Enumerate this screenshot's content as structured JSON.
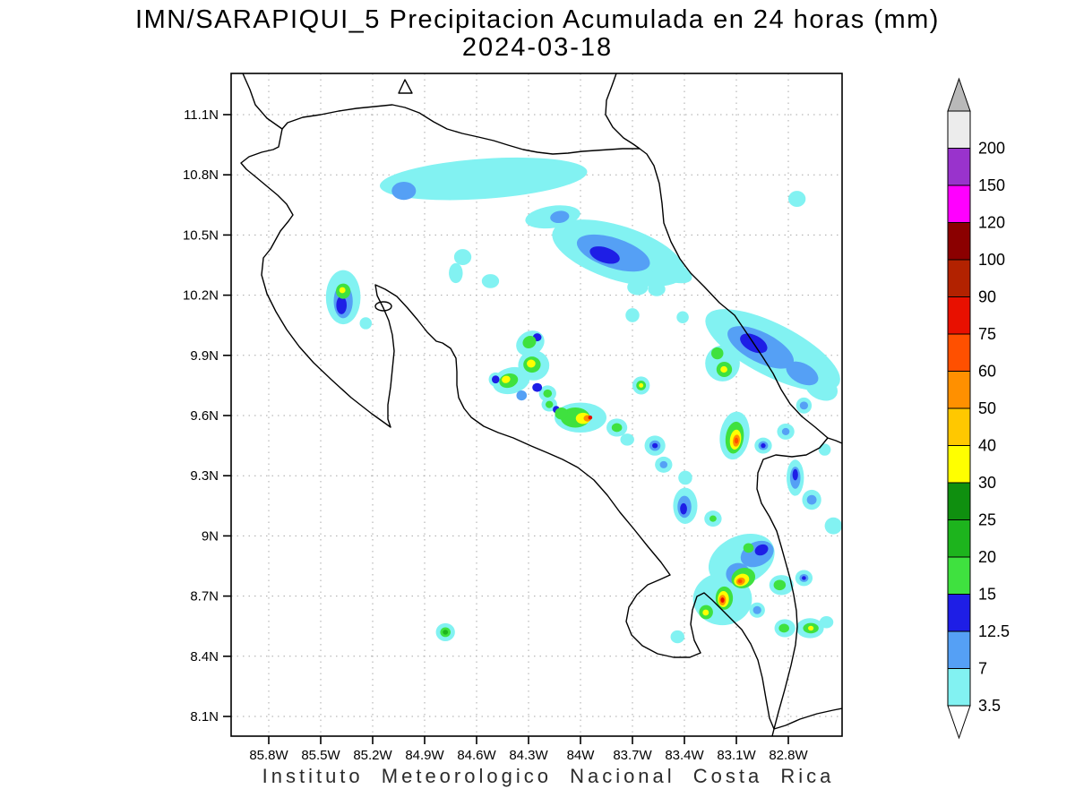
{
  "title": {
    "line1": "IMN/SARAPIQUI_5 Precipitacion Acumulada en 24 horas (mm)",
    "line2": "2024-03-18"
  },
  "footer": {
    "caption": "Instituto Meteorologico Nacional Costa Rica"
  },
  "chart_data": {
    "type": "heatmap",
    "title": "IMN/SARAPIQUI_5 Precipitacion Acumulada en 24 horas (mm)",
    "date": "2024-03-18",
    "variable": "Precipitacion Acumulada en 24 horas",
    "units": "mm",
    "source_label": "IMN/SARAPIQUI_5",
    "region": "Costa Rica",
    "grid": "dotted",
    "legend_position": "right colorbar",
    "y_ticks": [
      {
        "label": "11.1N",
        "lat": 11.1
      },
      {
        "label": "10.8N",
        "lat": 10.8
      },
      {
        "label": "10.5N",
        "lat": 10.5
      },
      {
        "label": "10.2N",
        "lat": 10.2
      },
      {
        "label": "9.9N",
        "lat": 9.9
      },
      {
        "label": "9.6N",
        "lat": 9.6
      },
      {
        "label": "9.3N",
        "lat": 9.3
      },
      {
        "label": "9N",
        "lat": 9.0
      },
      {
        "label": "8.7N",
        "lat": 8.7
      },
      {
        "label": "8.4N",
        "lat": 8.4
      },
      {
        "label": "8.1N",
        "lat": 8.1
      }
    ],
    "x_ticks": [
      {
        "label": "85.8W",
        "lon": -85.8
      },
      {
        "label": "85.5W",
        "lon": -85.5
      },
      {
        "label": "85.2W",
        "lon": -85.2
      },
      {
        "label": "84.9W",
        "lon": -84.9
      },
      {
        "label": "84.6W",
        "lon": -84.6
      },
      {
        "label": "84.3W",
        "lon": -84.3
      },
      {
        "label": "84W",
        "lon": -84.0
      },
      {
        "label": "83.7W",
        "lon": -83.7
      },
      {
        "label": "83.4W",
        "lon": -83.4
      },
      {
        "label": "83.1W",
        "lon": -83.1
      },
      {
        "label": "82.8W",
        "lon": -82.8
      }
    ],
    "levels_mm": [
      3.5,
      7,
      12.5,
      15,
      20,
      25,
      30,
      40,
      50,
      60,
      75,
      90,
      100,
      120,
      150,
      200
    ],
    "colorbar": {
      "top_arrow_color": "#b9b9b9",
      "bottom_arrow_color": "#ffffff",
      "segments_top_to_bottom": [
        {
          "range": "> 200",
          "color": "#ececec",
          "label": "200"
        },
        {
          "range": "150-200",
          "color": "#9933cc",
          "label": "150"
        },
        {
          "range": "120-150",
          "color": "#ff00ff",
          "label": "120"
        },
        {
          "range": "100-120",
          "color": "#8b0000",
          "label": "100"
        },
        {
          "range": "90-100",
          "color": "#b22200",
          "label": "90"
        },
        {
          "range": "75-90",
          "color": "#e81000",
          "label": "75"
        },
        {
          "range": "60-75",
          "color": "#ff5000",
          "label": "60"
        },
        {
          "range": "50-60",
          "color": "#ff9000",
          "label": "50"
        },
        {
          "range": "40-50",
          "color": "#ffc800",
          "label": "40"
        },
        {
          "range": "30-40",
          "color": "#ffff00",
          "label": "30"
        },
        {
          "range": "25-30",
          "color": "#0f8f0f",
          "label": "25"
        },
        {
          "range": "20-25",
          "color": "#1db41d",
          "label": "20"
        },
        {
          "range": "15-20",
          "color": "#3fe13f",
          "label": "15"
        },
        {
          "range": "12.5-15",
          "color": "#1e1ee6",
          "label": "12.5"
        },
        {
          "range": "7-12.5",
          "color": "#55a0f5",
          "label": "7"
        },
        {
          "range": "3.5-7",
          "color": "#82f2f2",
          "label": "3.5"
        }
      ]
    },
    "cells_format": "[lon_deg, lat_deg, rx_deg, ry_deg, rotation_deg, mm_value] — approximate filled-contour precipitation cells; mm is a representative value inside the color band",
    "cells": [
      [
        -84.56,
        10.78,
        0.6,
        0.1,
        -4,
        5
      ],
      [
        -85.02,
        10.72,
        0.07,
        0.045,
        0,
        9
      ],
      [
        -84.16,
        10.59,
        0.16,
        0.055,
        -8,
        5
      ],
      [
        -84.12,
        10.59,
        0.055,
        0.03,
        -8,
        9
      ],
      [
        -83.78,
        10.41,
        0.4,
        0.135,
        18,
        5
      ],
      [
        -83.81,
        10.41,
        0.22,
        0.075,
        18,
        9
      ],
      [
        -83.86,
        10.4,
        0.09,
        0.038,
        18,
        13
      ],
      [
        -83.48,
        10.32,
        0.13,
        0.05,
        20,
        5
      ],
      [
        -83.67,
        10.24,
        0.06,
        0.04,
        0,
        5
      ],
      [
        -83.56,
        10.23,
        0.05,
        0.035,
        0,
        5
      ],
      [
        -84.68,
        10.39,
        0.05,
        0.04,
        0,
        5
      ],
      [
        -84.72,
        10.31,
        0.04,
        0.05,
        0,
        5
      ],
      [
        -84.52,
        10.27,
        0.05,
        0.035,
        0,
        5
      ],
      [
        -82.75,
        10.68,
        0.05,
        0.04,
        0,
        5
      ],
      [
        -85.37,
        10.19,
        0.1,
        0.135,
        0,
        5
      ],
      [
        -85.37,
        10.17,
        0.055,
        0.085,
        0,
        9
      ],
      [
        -85.38,
        10.15,
        0.03,
        0.045,
        0,
        13
      ],
      [
        -85.37,
        10.22,
        0.042,
        0.038,
        0,
        17
      ],
      [
        -85.375,
        10.225,
        0.018,
        0.015,
        0,
        32
      ],
      [
        -85.24,
        10.06,
        0.035,
        0.03,
        0,
        5
      ],
      [
        -84.29,
        9.96,
        0.085,
        0.06,
        -30,
        5
      ],
      [
        -84.295,
        9.966,
        0.04,
        0.03,
        -30,
        17
      ],
      [
        -84.25,
        9.99,
        0.025,
        0.02,
        0,
        13
      ],
      [
        -84.27,
        9.85,
        0.09,
        0.075,
        0,
        5
      ],
      [
        -84.28,
        9.854,
        0.05,
        0.04,
        0,
        17
      ],
      [
        -84.285,
        9.859,
        0.025,
        0.02,
        0,
        32
      ],
      [
        -84.4,
        9.774,
        0.11,
        0.065,
        -15,
        5
      ],
      [
        -84.415,
        9.774,
        0.055,
        0.035,
        -15,
        17
      ],
      [
        -84.43,
        9.78,
        0.025,
        0.018,
        -15,
        32
      ],
      [
        -84.19,
        9.71,
        0.05,
        0.04,
        0,
        5
      ],
      [
        -84.19,
        9.71,
        0.025,
        0.02,
        0,
        17
      ],
      [
        -84.25,
        9.74,
        0.028,
        0.022,
        0,
        13
      ],
      [
        -84.34,
        9.7,
        0.03,
        0.025,
        0,
        9
      ],
      [
        -84.49,
        9.78,
        0.04,
        0.035,
        0,
        5
      ],
      [
        -84.49,
        9.78,
        0.022,
        0.02,
        0,
        13
      ],
      [
        -84.0,
        9.59,
        0.15,
        0.075,
        0,
        5
      ],
      [
        -84.03,
        9.59,
        0.085,
        0.05,
        0,
        17
      ],
      [
        -83.985,
        9.586,
        0.042,
        0.028,
        0,
        32
      ],
      [
        -83.96,
        9.586,
        0.022,
        0.016,
        0,
        52
      ],
      [
        -83.944,
        9.59,
        0.012,
        0.01,
        0,
        78
      ],
      [
        -84.11,
        9.61,
        0.038,
        0.03,
        0,
        17
      ],
      [
        -84.14,
        9.63,
        0.02,
        0.018,
        0,
        13
      ],
      [
        -84.18,
        9.655,
        0.045,
        0.035,
        0,
        5
      ],
      [
        -84.18,
        9.655,
        0.022,
        0.018,
        0,
        17
      ],
      [
        -83.79,
        9.54,
        0.06,
        0.045,
        0,
        5
      ],
      [
        -83.79,
        9.54,
        0.03,
        0.022,
        0,
        17
      ],
      [
        -83.73,
        9.48,
        0.04,
        0.03,
        0,
        5
      ],
      [
        -83.65,
        9.75,
        0.05,
        0.045,
        0,
        5
      ],
      [
        -83.65,
        9.75,
        0.028,
        0.024,
        0,
        17
      ],
      [
        -83.65,
        9.75,
        0.013,
        0.011,
        0,
        32
      ],
      [
        -83.57,
        9.45,
        0.06,
        0.05,
        0,
        5
      ],
      [
        -83.57,
        9.45,
        0.032,
        0.026,
        0,
        9
      ],
      [
        -83.57,
        9.45,
        0.016,
        0.013,
        0,
        13
      ],
      [
        -83.52,
        9.355,
        0.05,
        0.04,
        0,
        5
      ],
      [
        -83.52,
        9.355,
        0.022,
        0.018,
        0,
        9
      ],
      [
        -82.89,
        9.926,
        0.43,
        0.13,
        27,
        5
      ],
      [
        -82.96,
        9.94,
        0.21,
        0.075,
        27,
        9
      ],
      [
        -83.0,
        9.96,
        0.085,
        0.04,
        27,
        13
      ],
      [
        -82.72,
        9.81,
        0.1,
        0.05,
        27,
        9
      ],
      [
        -82.61,
        9.74,
        0.1,
        0.06,
        27,
        5
      ],
      [
        -83.18,
        9.86,
        0.1,
        0.09,
        0,
        5
      ],
      [
        -83.21,
        9.91,
        0.035,
        0.03,
        0,
        17
      ],
      [
        -83.17,
        9.83,
        0.045,
        0.038,
        0,
        17
      ],
      [
        -83.172,
        9.83,
        0.02,
        0.016,
        0,
        32
      ],
      [
        -83.11,
        9.5,
        0.085,
        0.12,
        8,
        5
      ],
      [
        -83.11,
        9.49,
        0.052,
        0.08,
        8,
        17
      ],
      [
        -83.105,
        9.48,
        0.032,
        0.05,
        8,
        32
      ],
      [
        -83.1,
        9.475,
        0.02,
        0.03,
        8,
        52
      ],
      [
        -83.1,
        9.475,
        0.011,
        0.015,
        0,
        65
      ],
      [
        -82.945,
        9.45,
        0.05,
        0.04,
        0,
        5
      ],
      [
        -82.945,
        9.45,
        0.028,
        0.022,
        0,
        9
      ],
      [
        -82.945,
        9.45,
        0.014,
        0.012,
        0,
        13
      ],
      [
        -82.815,
        9.52,
        0.05,
        0.04,
        0,
        5
      ],
      [
        -82.815,
        9.52,
        0.022,
        0.018,
        0,
        9
      ],
      [
        -82.71,
        9.65,
        0.045,
        0.04,
        0,
        5
      ],
      [
        -82.71,
        9.65,
        0.024,
        0.02,
        0,
        9
      ],
      [
        -82.76,
        9.29,
        0.05,
        0.09,
        0,
        5
      ],
      [
        -82.76,
        9.29,
        0.03,
        0.055,
        0,
        9
      ],
      [
        -82.76,
        9.305,
        0.016,
        0.028,
        0,
        13
      ],
      [
        -82.665,
        9.18,
        0.055,
        0.05,
        0,
        5
      ],
      [
        -82.665,
        9.18,
        0.028,
        0.024,
        0,
        9
      ],
      [
        -82.59,
        9.43,
        0.035,
        0.03,
        0,
        5
      ],
      [
        -83.395,
        9.29,
        0.04,
        0.035,
        0,
        5
      ],
      [
        -83.395,
        9.15,
        0.07,
        0.09,
        0,
        5
      ],
      [
        -83.4,
        9.145,
        0.04,
        0.055,
        0,
        9
      ],
      [
        -83.405,
        9.135,
        0.02,
        0.028,
        0,
        13
      ],
      [
        -83.235,
        9.086,
        0.05,
        0.04,
        0,
        5
      ],
      [
        -83.235,
        9.086,
        0.02,
        0.016,
        0,
        17
      ],
      [
        -82.54,
        9.05,
        0.05,
        0.042,
        0,
        5
      ],
      [
        -83.07,
        8.88,
        0.2,
        0.12,
        -25,
        5
      ],
      [
        -83.18,
        8.685,
        0.17,
        0.13,
        0,
        5
      ],
      [
        -82.98,
        8.91,
        0.1,
        0.06,
        -25,
        9
      ],
      [
        -82.955,
        8.93,
        0.04,
        0.026,
        -25,
        13
      ],
      [
        -83.09,
        8.81,
        0.07,
        0.055,
        0,
        9
      ],
      [
        -83.06,
        8.79,
        0.07,
        0.05,
        -20,
        17
      ],
      [
        -83.07,
        8.78,
        0.045,
        0.03,
        -20,
        32
      ],
      [
        -83.075,
        8.774,
        0.026,
        0.018,
        -20,
        52
      ],
      [
        -83.078,
        8.774,
        0.012,
        0.009,
        0,
        65
      ],
      [
        -83.17,
        8.69,
        0.05,
        0.058,
        0,
        17
      ],
      [
        -83.175,
        8.685,
        0.032,
        0.04,
        0,
        32
      ],
      [
        -83.18,
        8.68,
        0.02,
        0.026,
        0,
        52
      ],
      [
        -83.18,
        8.68,
        0.011,
        0.013,
        0,
        78
      ],
      [
        -83.275,
        8.62,
        0.04,
        0.035,
        0,
        17
      ],
      [
        -83.277,
        8.618,
        0.018,
        0.015,
        0,
        32
      ],
      [
        -83.03,
        8.94,
        0.045,
        0.036,
        0,
        5
      ],
      [
        -83.03,
        8.94,
        0.03,
        0.024,
        0,
        17
      ],
      [
        -82.84,
        8.755,
        0.07,
        0.05,
        0,
        5
      ],
      [
        -82.85,
        8.755,
        0.035,
        0.026,
        0,
        17
      ],
      [
        -82.71,
        8.79,
        0.05,
        0.04,
        0,
        5
      ],
      [
        -82.71,
        8.79,
        0.026,
        0.02,
        0,
        9
      ],
      [
        -82.71,
        8.79,
        0.012,
        0.01,
        0,
        13
      ],
      [
        -82.98,
        8.63,
        0.045,
        0.038,
        0,
        5
      ],
      [
        -82.98,
        8.63,
        0.024,
        0.02,
        0,
        9
      ],
      [
        -82.82,
        8.54,
        0.06,
        0.045,
        0,
        5
      ],
      [
        -82.825,
        8.54,
        0.03,
        0.022,
        0,
        17
      ],
      [
        -82.675,
        8.54,
        0.08,
        0.05,
        0,
        5
      ],
      [
        -82.67,
        8.54,
        0.045,
        0.026,
        0,
        17
      ],
      [
        -82.67,
        8.54,
        0.016,
        0.012,
        0,
        32
      ],
      [
        -82.58,
        8.57,
        0.04,
        0.03,
        0,
        5
      ],
      [
        -84.78,
        8.52,
        0.055,
        0.045,
        0,
        5
      ],
      [
        -84.78,
        8.52,
        0.03,
        0.024,
        0,
        17
      ],
      [
        -84.78,
        8.52,
        0.015,
        0.012,
        0,
        22
      ],
      [
        -83.44,
        8.497,
        0.04,
        0.032,
        0,
        5
      ],
      [
        -83.7,
        10.1,
        0.04,
        0.035,
        0,
        5
      ],
      [
        -83.41,
        10.09,
        0.035,
        0.03,
        0,
        5
      ]
    ]
  }
}
